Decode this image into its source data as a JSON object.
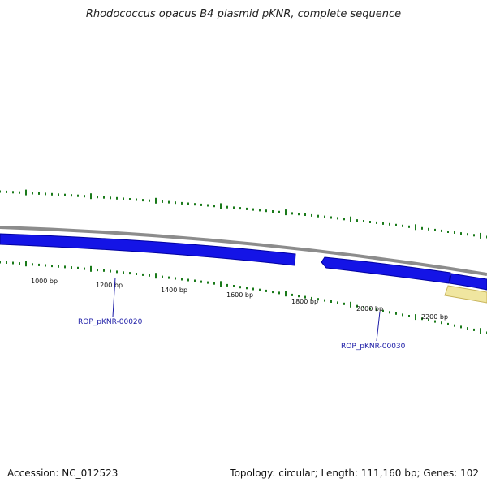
{
  "title": "Rhodococcus opacus B4 plasmid pKNR, complete sequence",
  "footer": {
    "accession": "Accession: NC_012523",
    "summary": "Topology: circular; Length: 111,160 bp; Genes: 102"
  },
  "ticks": [
    {
      "label": "1000 bp"
    },
    {
      "label": "1200 bp"
    },
    {
      "label": "1400 bp"
    },
    {
      "label": "1600 bp"
    },
    {
      "label": "1800 bp"
    },
    {
      "label": "2000 bp"
    },
    {
      "label": "2200 bp"
    }
  ],
  "genes": [
    {
      "id": "ROP_pKNR-00020"
    },
    {
      "id": "ROP_pKNR-00030"
    }
  ],
  "colors": {
    "backbone": "#8c8c8c",
    "gene_blue": "#1414e6",
    "gene_edge": "#0000a0",
    "other_feature": "#f0e6a0",
    "tick_green": "#1a7a1a"
  }
}
